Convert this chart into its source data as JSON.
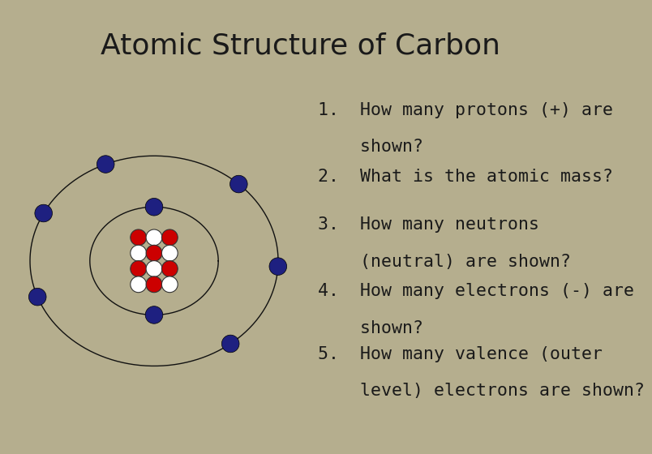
{
  "title": "Atomic Structure of Carbon",
  "title_bg_color": "#b5ae8e",
  "left_bg_color": "#ffffff",
  "right_bg_color": "#f4b896",
  "title_fontsize": 26,
  "electron_color": "#1e2080",
  "proton_color": "#cc0000",
  "neutron_color": "#ffffff",
  "orbit_color": "#111111",
  "inner_angles": [
    90,
    270
  ],
  "outer_angles": [
    113,
    47,
    357,
    308,
    200,
    153
  ],
  "questions_lines": [
    [
      "1.  How many protons (+) are",
      "    shown?"
    ],
    [
      "2.  What is the atomic mass?"
    ],
    [
      "3.  How many neutrons",
      "    (neutral) are shown?"
    ],
    [
      "4.  How many electrons (-) are",
      "    shown?"
    ],
    [
      "5.  How many valence (outer",
      "    level) electrons are shown?"
    ]
  ],
  "nucleus_grid": [
    [
      "p",
      "n",
      "p"
    ],
    [
      "n",
      "p",
      "n"
    ],
    [
      "p",
      "n",
      "p"
    ],
    [
      "n",
      "p",
      "n"
    ]
  ]
}
